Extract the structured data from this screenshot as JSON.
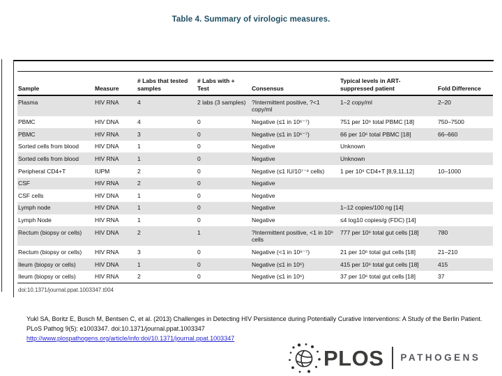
{
  "title": "Table 4. Summary of virologic measures.",
  "colors": {
    "title_text": "#1f4e63",
    "row_shade": "#e2e2e2",
    "link_blue": "#2222cc",
    "logo_dark": "#3b3b3a",
    "logo_gray": "#55565a"
  },
  "table": {
    "headers": [
      "Sample",
      "Measure",
      "# Labs that tested samples",
      "# Labs with + Test",
      "Consensus",
      "Typical levels in ART-suppressed patient",
      "Fold Difference"
    ],
    "rows": [
      [
        "Plasma",
        "HIV RNA",
        "4",
        "2 labs (3 samples)",
        "?Intermittent positive, ?<1 copy/ml",
        "1–2 copy/ml",
        "2–20"
      ],
      [
        "PBMC",
        "HIV DNA",
        "4",
        "0",
        "Negative (≤1 in 10⁶⁻⁷)",
        "751 per 10⁶ total PBMC [18]",
        "750–7500"
      ],
      [
        "PBMC",
        "HIV RNA",
        "3",
        "0",
        "Negative (≤1 in 10⁶⁻⁷)",
        "66 per 10⁶ total PBMC [18]",
        "66–660"
      ],
      [
        "Sorted cells from blood",
        "HIV DNA",
        "1",
        "0",
        "Negative",
        "Unknown",
        ""
      ],
      [
        "Sorted cells from blood",
        "HIV RNA",
        "1",
        "0",
        "Negative",
        "Unknown",
        ""
      ],
      [
        "Peripheral CD4+T",
        "IUPM",
        "2",
        "0",
        "Negative (≤1 IU/10⁷⁻⁹ cells)",
        "1 per 10⁶ CD4+T [8,9,11,12]",
        "10–1000"
      ],
      [
        "CSF",
        "HIV RNA",
        "2",
        "0",
        "Negative",
        "",
        ""
      ],
      [
        "CSF cells",
        "HIV DNA",
        "1",
        "0",
        "Negative",
        "",
        ""
      ],
      [
        "Lymph node",
        "HIV DNA",
        "1",
        "0",
        "Negative",
        "1–12 copies/100 ng [14]",
        ""
      ],
      [
        "Lymph Node",
        "HIV RNA",
        "1",
        "0",
        "Negative",
        "≤4 log10 copies/g (FDC) [14]",
        ""
      ],
      [
        "Rectum (biopsy or cells)",
        "HIV DNA",
        "2",
        "1",
        "?Intermittent positive, <1 in 10⁶ cells",
        "777 per 10⁶ total gut cells [18]",
        "780"
      ],
      [
        "Rectum (biopsy or cells)",
        "HIV RNA",
        "3",
        "0",
        "Negative (<1 in 10⁶⁻⁷)",
        "21 per 10⁶ total gut cells [18]",
        "21–210"
      ],
      [
        "Ileum (biopsy or cells)",
        "HIV DNA",
        "1",
        "0",
        "Negative (≤1 in 10⁶)",
        "415 per 10⁶ total gut cells [18]",
        "415"
      ],
      [
        "Ileum (biopsy or cells)",
        "HIV RNA",
        "2",
        "0",
        "Negative (≤1 in 10⁶)",
        "37 per 10⁶ total gut cells [18]",
        "37"
      ]
    ],
    "doi_note": "doi:10.1371/journal.ppat.1003347.t004"
  },
  "citation": {
    "text": "Yukl SA, Boritz E, Busch M, Bentsen C, et al. (2013) Challenges in Detecting HIV Persistence during Potentially Curative Interventions: A Study of the Berlin Patient. PLoS Pathog 9(5): e1003347. doi:10.1371/journal.ppat.1003347",
    "link": "http://www.plospathogens.org/article/info:doi/10.1371/journal.ppat.1003347"
  },
  "logo": {
    "brand": "PLOS",
    "journal": "PATHOGENS"
  }
}
